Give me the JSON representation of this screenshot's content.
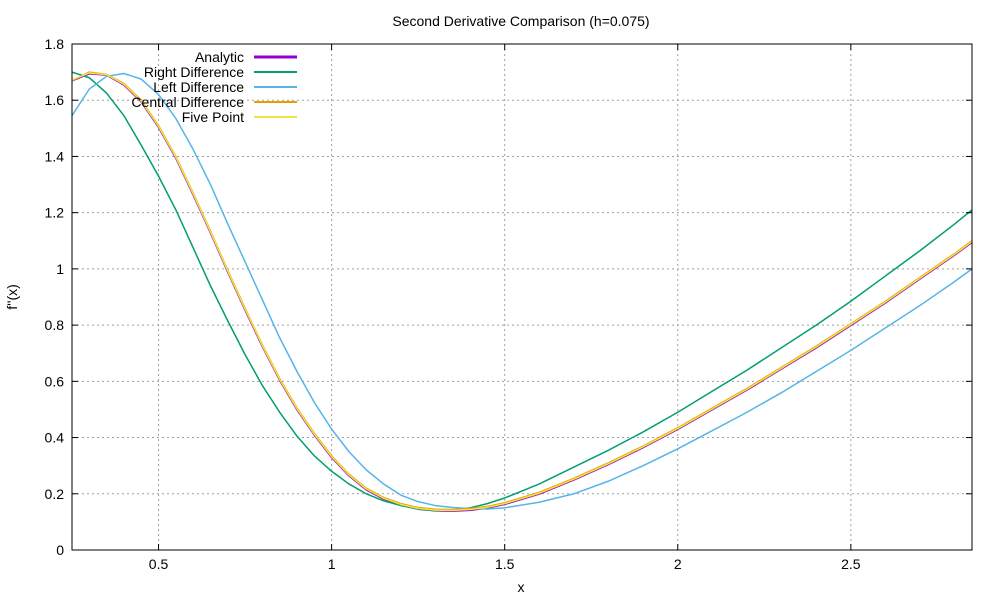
{
  "chart_data": {
    "type": "line",
    "title": "Second Derivative Comparison (h=0.075)",
    "xlabel": "x",
    "ylabel": "f''(x)",
    "xlim": [
      0.25,
      2.85
    ],
    "ylim": [
      0,
      1.8
    ],
    "xticks": [
      0.5,
      1,
      1.5,
      2,
      2.5
    ],
    "xtick_labels": [
      "0.5",
      "1",
      "1.5",
      "2",
      "2.5"
    ],
    "yticks": [
      0,
      0.2,
      0.4,
      0.6,
      0.8,
      1,
      1.2,
      1.4,
      1.6,
      1.8
    ],
    "ytick_labels": [
      "0",
      "0.2",
      "0.4",
      "0.6",
      "0.8",
      "1",
      "1.2",
      "1.4",
      "1.6",
      "1.8"
    ],
    "grid": true,
    "legend_position": "top-left",
    "series": [
      {
        "name": "Analytic",
        "color": "#9400d3",
        "width": 2,
        "x": [
          0.25,
          0.3,
          0.35,
          0.4,
          0.45,
          0.5,
          0.55,
          0.6,
          0.65,
          0.7,
          0.75,
          0.8,
          0.85,
          0.9,
          0.95,
          1.0,
          1.05,
          1.1,
          1.15,
          1.2,
          1.25,
          1.3,
          1.35,
          1.4,
          1.45,
          1.5,
          1.6,
          1.7,
          1.8,
          1.9,
          2.0,
          2.1,
          2.2,
          2.3,
          2.4,
          2.5,
          2.6,
          2.7,
          2.8,
          2.85
        ],
        "y": [
          1.67,
          1.695,
          1.69,
          1.655,
          1.595,
          1.505,
          1.395,
          1.265,
          1.13,
          0.99,
          0.855,
          0.725,
          0.605,
          0.5,
          0.41,
          0.33,
          0.265,
          0.215,
          0.182,
          0.16,
          0.146,
          0.14,
          0.139,
          0.142,
          0.15,
          0.163,
          0.2,
          0.25,
          0.305,
          0.365,
          0.43,
          0.5,
          0.57,
          0.645,
          0.72,
          0.8,
          0.88,
          0.965,
          1.05,
          1.095
        ]
      },
      {
        "name": "Right Difference",
        "color": "#009e73",
        "width": 1.5,
        "x": [
          0.25,
          0.3,
          0.35,
          0.4,
          0.45,
          0.5,
          0.55,
          0.6,
          0.65,
          0.7,
          0.75,
          0.8,
          0.85,
          0.9,
          0.95,
          1.0,
          1.05,
          1.1,
          1.15,
          1.2,
          1.25,
          1.3,
          1.35,
          1.4,
          1.45,
          1.5,
          1.6,
          1.7,
          1.8,
          1.9,
          2.0,
          2.1,
          2.2,
          2.3,
          2.4,
          2.5,
          2.6,
          2.7,
          2.8,
          2.85
        ],
        "y": [
          1.7,
          1.68,
          1.625,
          1.545,
          1.44,
          1.33,
          1.21,
          1.075,
          0.94,
          0.815,
          0.695,
          0.585,
          0.49,
          0.405,
          0.335,
          0.28,
          0.235,
          0.2,
          0.175,
          0.158,
          0.146,
          0.14,
          0.142,
          0.15,
          0.165,
          0.185,
          0.235,
          0.295,
          0.355,
          0.42,
          0.49,
          0.565,
          0.64,
          0.72,
          0.8,
          0.885,
          0.975,
          1.065,
          1.16,
          1.21
        ]
      },
      {
        "name": "Left Difference",
        "color": "#56b4e9",
        "width": 1.5,
        "x": [
          0.25,
          0.3,
          0.35,
          0.4,
          0.45,
          0.5,
          0.55,
          0.6,
          0.65,
          0.7,
          0.75,
          0.8,
          0.85,
          0.9,
          0.95,
          1.0,
          1.05,
          1.1,
          1.15,
          1.2,
          1.25,
          1.3,
          1.35,
          1.4,
          1.45,
          1.5,
          1.6,
          1.7,
          1.8,
          1.9,
          2.0,
          2.1,
          2.2,
          2.3,
          2.4,
          2.5,
          2.6,
          2.7,
          2.8,
          2.85
        ],
        "y": [
          1.545,
          1.64,
          1.685,
          1.695,
          1.675,
          1.62,
          1.535,
          1.425,
          1.3,
          1.16,
          1.025,
          0.89,
          0.755,
          0.635,
          0.525,
          0.43,
          0.35,
          0.285,
          0.235,
          0.195,
          0.172,
          0.158,
          0.151,
          0.147,
          0.146,
          0.15,
          0.17,
          0.2,
          0.245,
          0.3,
          0.36,
          0.425,
          0.49,
          0.56,
          0.635,
          0.71,
          0.79,
          0.87,
          0.955,
          1.0
        ]
      },
      {
        "name": "Central Difference",
        "color": "#e69f00",
        "width": 1.5,
        "x": [
          0.25,
          0.3,
          0.35,
          0.4,
          0.45,
          0.5,
          0.55,
          0.6,
          0.65,
          0.7,
          0.75,
          0.8,
          0.85,
          0.9,
          0.95,
          1.0,
          1.05,
          1.1,
          1.15,
          1.2,
          1.25,
          1.3,
          1.35,
          1.4,
          1.45,
          1.5,
          1.6,
          1.7,
          1.8,
          1.9,
          2.0,
          2.1,
          2.2,
          2.3,
          2.4,
          2.5,
          2.6,
          2.7,
          2.8,
          2.85
        ],
        "y": [
          1.67,
          1.7,
          1.692,
          1.66,
          1.6,
          1.51,
          1.4,
          1.27,
          1.135,
          0.995,
          0.86,
          0.73,
          0.61,
          0.505,
          0.415,
          0.335,
          0.27,
          0.22,
          0.187,
          0.165,
          0.151,
          0.145,
          0.144,
          0.147,
          0.155,
          0.168,
          0.205,
          0.255,
          0.31,
          0.37,
          0.435,
          0.505,
          0.575,
          0.65,
          0.725,
          0.805,
          0.885,
          0.97,
          1.055,
          1.1
        ]
      },
      {
        "name": "Five Point",
        "color": "#f0e442",
        "width": 1.5,
        "x": [
          0.25,
          0.3,
          0.35,
          0.4,
          0.45,
          0.5,
          0.55,
          0.6,
          0.65,
          0.7,
          0.75,
          0.8,
          0.85,
          0.9,
          0.95,
          1.0,
          1.05,
          1.1,
          1.15,
          1.2,
          1.25,
          1.3,
          1.35,
          1.4,
          1.45,
          1.5,
          1.6,
          1.7,
          1.8,
          1.9,
          2.0,
          2.1,
          2.2,
          2.3,
          2.4,
          2.5,
          2.6,
          2.7,
          2.8,
          2.85
        ],
        "y": [
          1.672,
          1.697,
          1.691,
          1.657,
          1.597,
          1.507,
          1.397,
          1.267,
          1.132,
          0.992,
          0.857,
          0.727,
          0.607,
          0.502,
          0.412,
          0.332,
          0.267,
          0.217,
          0.184,
          0.162,
          0.148,
          0.142,
          0.141,
          0.144,
          0.152,
          0.165,
          0.202,
          0.252,
          0.307,
          0.367,
          0.432,
          0.502,
          0.572,
          0.647,
          0.722,
          0.802,
          0.882,
          0.967,
          1.052,
          1.097
        ]
      }
    ]
  }
}
